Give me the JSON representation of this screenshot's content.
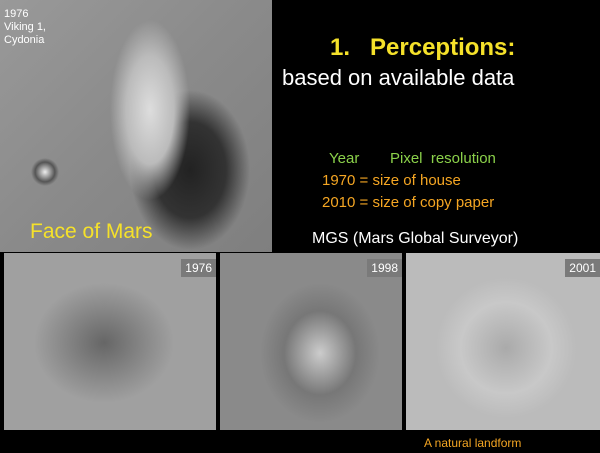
{
  "inset": {
    "year": "1976",
    "mission": "Viking 1,",
    "site": "Cydonia",
    "caption": "Face of Mars"
  },
  "title": {
    "heading": "1.   Perceptions:",
    "subheading": "based on available data"
  },
  "resolution": {
    "header_year": "Year",
    "header_resolution": "Pixel  resolution",
    "rows": [
      "1970 = size of house",
      "2010 = size of copy paper"
    ]
  },
  "mgs_label": "MGS (Mars Global Surveyor)",
  "panels": [
    {
      "year": "1976"
    },
    {
      "year": "1998"
    },
    {
      "year": "2001"
    }
  ],
  "footer": "A natural landform"
}
